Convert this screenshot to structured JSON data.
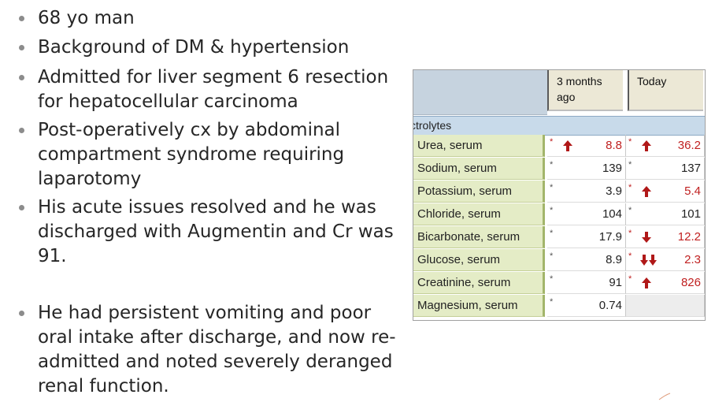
{
  "bullets": [
    "68 yo man",
    "Background of DM & hypertension",
    "Admitted for liver segment 6 resection\nfor hepatocellular carcinoma",
    "Post-operatively cx by abdominal\ncompartment syndrome requiring\nlaparotomy",
    "His acute issues resolved and he was\ndischarged with Augmentin and Cr was\n91.",
    "He had persistent vomiting and poor\noral intake after discharge, and now re-\nadmitted and noted severely deranged\nrenal function."
  ],
  "lab": {
    "columns": [
      "3 months\nago",
      "Today"
    ],
    "section": "ctrolytes",
    "flag_symbol": "*",
    "colors": {
      "abnormal": "#c02020",
      "name_bg": "#e4ecc6",
      "section_bg": "#c8daea",
      "header_bg": "#ece8d6"
    },
    "rows": [
      {
        "name": "Urea, serum",
        "prev": {
          "value": "8.8",
          "arrow": "up",
          "abnormal": true
        },
        "today": {
          "value": "36.2",
          "arrow": "up",
          "abnormal": true
        }
      },
      {
        "name": "Sodium, serum",
        "prev": {
          "value": "139",
          "arrow": "",
          "abnormal": false
        },
        "today": {
          "value": "137",
          "arrow": "",
          "abnormal": false
        }
      },
      {
        "name": "Potassium, serum",
        "prev": {
          "value": "3.9",
          "arrow": "",
          "abnormal": false
        },
        "today": {
          "value": "5.4",
          "arrow": "up",
          "abnormal": true
        }
      },
      {
        "name": "Chloride, serum",
        "prev": {
          "value": "104",
          "arrow": "",
          "abnormal": false
        },
        "today": {
          "value": "101",
          "arrow": "",
          "abnormal": false
        }
      },
      {
        "name": "Bicarbonate, serum",
        "prev": {
          "value": "17.9",
          "arrow": "",
          "abnormal": false
        },
        "today": {
          "value": "12.2",
          "arrow": "down",
          "abnormal": true
        }
      },
      {
        "name": "Glucose, serum",
        "prev": {
          "value": "8.9",
          "arrow": "",
          "abnormal": false
        },
        "today": {
          "value": "2.3",
          "arrow": "double-down",
          "abnormal": true
        }
      },
      {
        "name": "Creatinine, serum",
        "prev": {
          "value": "91",
          "arrow": "",
          "abnormal": false
        },
        "today": {
          "value": "826",
          "arrow": "up",
          "abnormal": true
        }
      },
      {
        "name": "Magnesium, serum",
        "prev": {
          "value": "0.74",
          "arrow": "",
          "abnormal": false
        },
        "today": null
      }
    ]
  }
}
